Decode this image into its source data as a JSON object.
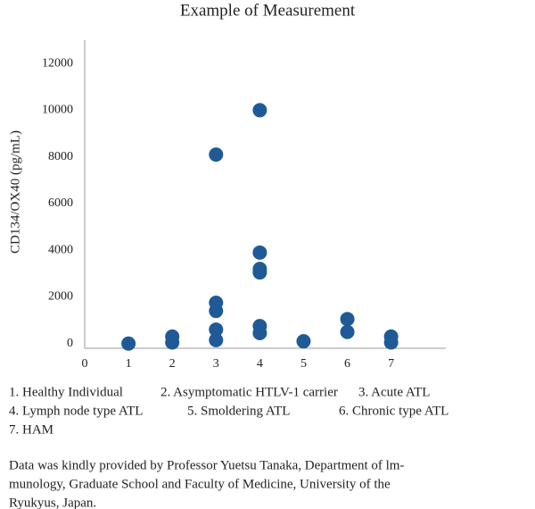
{
  "chart_data": {
    "type": "scatter",
    "title": "Example of Measurement",
    "y_label": "CD134/OX40 (pg/mL)",
    "color": "#1f5a96",
    "x": [
      1,
      2,
      2,
      3,
      3,
      3,
      3,
      3,
      4,
      4,
      4,
      4,
      4,
      4,
      5,
      6,
      6,
      7,
      7
    ],
    "values": [
      0,
      300,
      50,
      8100,
      1750,
      1400,
      600,
      150,
      10000,
      3900,
      3200,
      3050,
      750,
      450,
      100,
      1050,
      500,
      300,
      50
    ],
    "xlim": [
      0,
      8.25
    ],
    "xticks": [
      0,
      1,
      2,
      3,
      4,
      5,
      6,
      7
    ],
    "ylim": [
      -200,
      13000
    ],
    "yticks": [
      0,
      2000,
      4000,
      6000,
      8000,
      10000,
      12000
    ],
    "grid": false
  },
  "notes": {
    "groups": [
      [
        "1. Healthy Individual",
        "2. Asymptomatic HTLV-1 carrier",
        "3. Acute ATL"
      ],
      [
        "4. Lymph node type ATL",
        "5. Smoldering ATL",
        "6. Chronic type ATL"
      ],
      [
        "7. HAM"
      ]
    ],
    "credit": [
      "Data was kindly provided by Professor Yuetsu Tanaka, Department of lm-",
      "munology, Graduate School and Faculty of Medicine, University of the",
      "Ryukyus, Japan."
    ]
  }
}
